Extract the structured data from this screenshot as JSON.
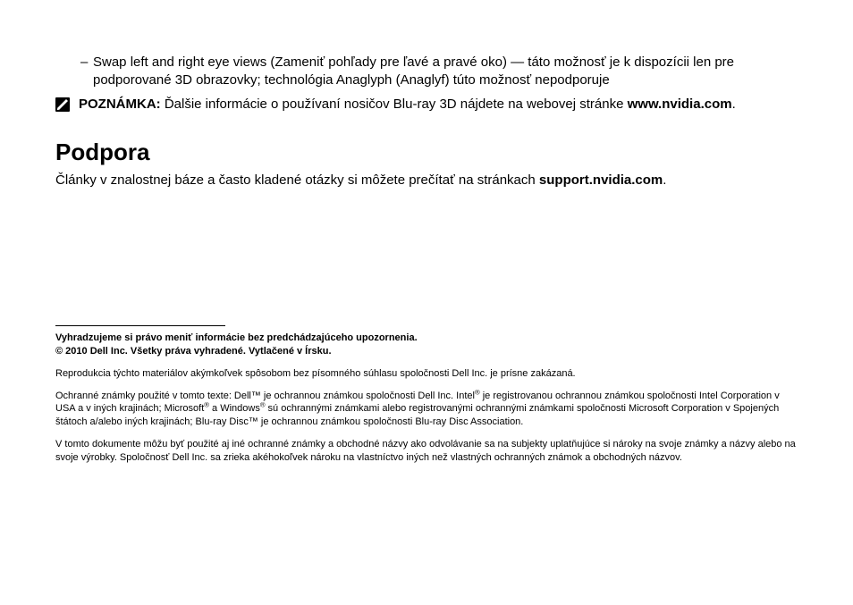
{
  "bullet": {
    "dash": "–",
    "text": "Swap left and right eye views (Zameniť pohľady pre ľavé a pravé oko) — táto možnosť je k dispozícii len pre podporované 3D obrazovky; technológia Anaglyph (Anaglyf) túto možnosť nepodporuje"
  },
  "note": {
    "label": "POZNÁMKA: ",
    "text_before_link": "Ďalšie informácie o používaní nosičov Blu-ray 3D nájdete na webovej stránke ",
    "link": "www.nvidia.com",
    "text_after_link": "."
  },
  "section": {
    "heading": "Podpora",
    "body_before_link": "Články v znalostnej báze a často kladené otázky si môžete prečítať na stránkach ",
    "link": "support.nvidia.com",
    "body_after_link": "."
  },
  "legal": {
    "disclaimer_bold": "Vyhradzujeme si právo meniť informácie bez predchádzajúceho upozornenia.\n© 2010 Dell Inc. Všetky práva vyhradené. Vytlačené v Írsku.",
    "p1": "Reprodukcia týchto materiálov akýmkoľvek spôsobom bez písomného súhlasu spoločnosti Dell Inc. je prísne zakázaná.",
    "p2_html": "Ochranné známky použité v tomto texte: Dell™ je ochrannou známkou spoločnosti Dell Inc. Intel<sup>®</sup> je registrovanou ochrannou známkou spoločnosti Intel Corporation v USA a v iných krajinách; Microsoft<sup>®</sup> a Windows<sup>®</sup> sú ochrannými známkami alebo registrovanými ochrannými známkami spoločnosti Microsoft Corporation v Spojených štátoch a/alebo iných krajinách; Blu-ray Disc™ je ochrannou známkou spoločnosti Blu-ray Disc Association.",
    "p3": "V tomto dokumente môžu byť použité aj iné ochranné známky a obchodné názvy ako odvolávanie sa na subjekty uplatňujúce si nároky na svoje známky a názvy alebo na svoje výrobky. Spoločnosť Dell Inc. sa zrieka akéhokoľvek nároku na vlastníctvo iných než vlastných ochranných známok a obchodných názvov."
  },
  "icon": {
    "note_svg_fill": "#000000",
    "note_svg_stroke": "#ffffff"
  }
}
